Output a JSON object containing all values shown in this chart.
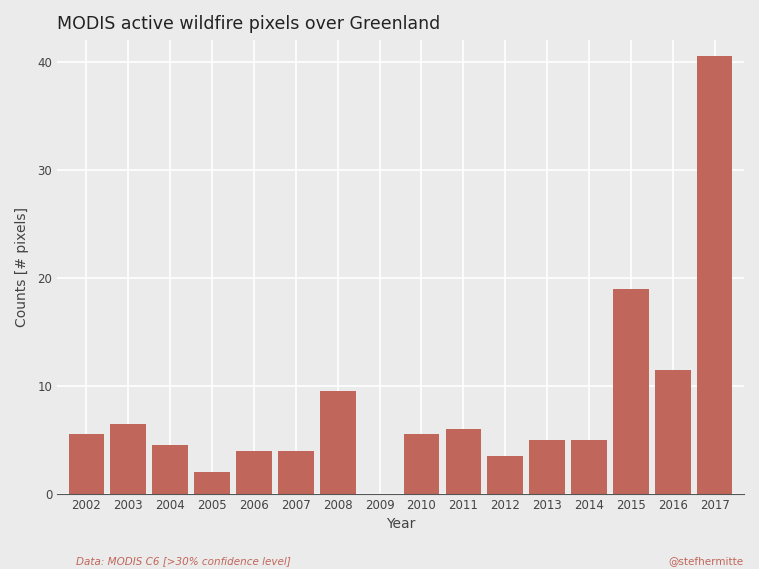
{
  "title": "MODIS active wildfire pixels over Greenland",
  "xlabel": "Year",
  "ylabel": "Counts [# pixels]",
  "bar_years": [
    2002,
    2003,
    2004,
    2005,
    2006,
    2007,
    2008,
    2009,
    2010,
    2011,
    2012,
    2013,
    2014,
    2015,
    2016,
    2017
  ],
  "bar_values": [
    5.5,
    6.5,
    4.5,
    2.0,
    4.0,
    4.0,
    9.5,
    0.0,
    5.5,
    6.0,
    3.5,
    5.0,
    5.0,
    19.0,
    11.5,
    40.5
  ],
  "bar_color": "#c1665a",
  "background_color": "#ebebeb",
  "grid_color": "#ffffff",
  "ylim": [
    0,
    42
  ],
  "yticks": [
    0,
    10,
    20,
    30,
    40
  ],
  "footnote_left": "Data: MODIS C6 [>30% confidence level]",
  "footnote_right": "@stefhermitte",
  "footnote_color": "#c1665a"
}
